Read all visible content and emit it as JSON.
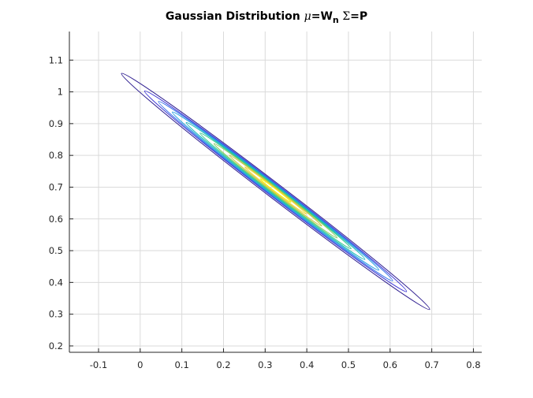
{
  "chart_data": {
    "type": "contour",
    "title": {
      "prefix": "Gaussian Distribution ",
      "mu": "μ",
      "eq1": "=W",
      "sub": "n",
      "sigma": " Σ",
      "eq2": "=P"
    },
    "xlabel": "",
    "ylabel": "",
    "xlim": [
      -0.17,
      0.82
    ],
    "ylim": [
      0.18,
      1.19
    ],
    "xticks": [
      -0.1,
      0,
      0.1,
      0.2,
      0.3,
      0.4,
      0.5,
      0.6,
      0.7,
      0.8
    ],
    "xtick_labels": [
      "-0.1",
      "0",
      "0.1",
      "0.2",
      "0.3",
      "0.4",
      "0.5",
      "0.6",
      "0.7",
      "0.8"
    ],
    "yticks": [
      0.2,
      0.3,
      0.4,
      0.5,
      0.6,
      0.7,
      0.8,
      0.9,
      1.0,
      1.1
    ],
    "ytick_labels": [
      "0.2",
      "0.3",
      "0.4",
      "0.5",
      "0.6",
      "0.7",
      "0.8",
      "0.9",
      "1",
      "1.1"
    ],
    "grid": true,
    "distribution": {
      "mean": [
        0.325,
        0.69
      ],
      "major_axis_end_low": [
        0.695,
        0.315
      ],
      "major_axis_end_high": [
        -0.045,
        1.058
      ],
      "minor_half_width_outer": 0.018
    },
    "levels": [
      {
        "scale": 1.0,
        "color": "#2d1c8f"
      },
      {
        "scale": 0.85,
        "color": "#3b33d6"
      },
      {
        "scale": 0.76,
        "color": "#2f6ee8"
      },
      {
        "scale": 0.67,
        "color": "#1f9be0"
      },
      {
        "scale": 0.58,
        "color": "#12b8b5"
      },
      {
        "scale": 0.49,
        "color": "#2ec78c"
      },
      {
        "scale": 0.4,
        "color": "#7fcc5a"
      },
      {
        "scale": 0.3,
        "color": "#c6c238"
      },
      {
        "scale": 0.2,
        "color": "#f2d93a"
      },
      {
        "scale": 0.1,
        "color": "#f9f20f"
      }
    ]
  }
}
